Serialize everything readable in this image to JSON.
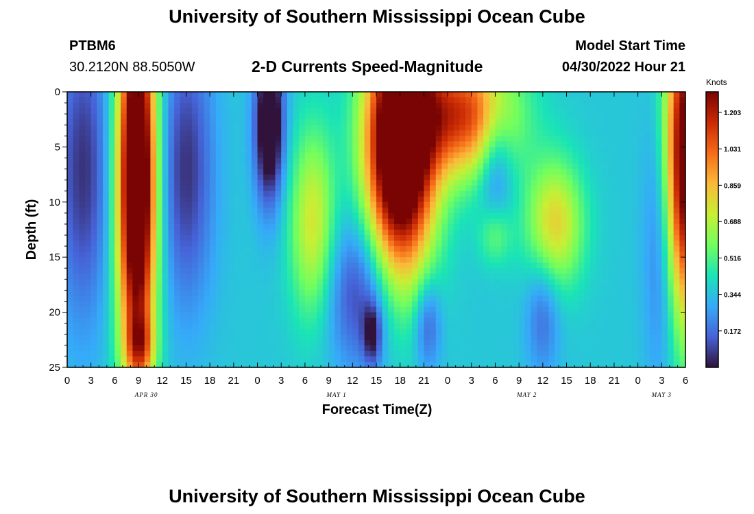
{
  "header": {
    "title": "University of Southern Mississippi Ocean Cube",
    "station": "PTBM6",
    "coords": "30.2120N  88.5050W",
    "subtitle": "2-D Currents Speed-Magnitude",
    "model_label": "Model Start Time",
    "model_time": "04/30/2022 Hour 21"
  },
  "footer": {
    "title": "University of Southern Mississippi Ocean Cube"
  },
  "chart_data": {
    "type": "heatmap",
    "title": "2-D Currents Speed-Magnitude",
    "xlabel": "Forecast Time(Z)",
    "ylabel": "Depth (ft)",
    "x_hours_range": [
      0,
      78
    ],
    "x_tick_labels": [
      "0",
      "3",
      "6",
      "9",
      "12",
      "15",
      "18",
      "21",
      "0",
      "3",
      "6",
      "9",
      "12",
      "15",
      "18",
      "21",
      "0",
      "3",
      "6",
      "9",
      "12",
      "15",
      "18",
      "21",
      "0",
      "3",
      "6"
    ],
    "date_labels": [
      {
        "label": "APR 30",
        "hour": 10
      },
      {
        "label": "MAY 1",
        "hour": 34
      },
      {
        "label": "MAY 2",
        "hour": 58
      },
      {
        "label": "MAY 3",
        "hour": 75
      }
    ],
    "y_range": [
      0,
      25
    ],
    "y_ticks": [
      0,
      5,
      10,
      15,
      20,
      25
    ],
    "y_reversed": true,
    "colorbar": {
      "unit": "Knots",
      "min": 0.0,
      "max": 1.3,
      "ticks": [
        "1.203",
        "1.031",
        "0.859",
        "0.688",
        "0.516",
        "0.344",
        "0.172"
      ],
      "colormap": [
        "#30123b",
        "#4662d7",
        "#36aaf9",
        "#1ae4b6",
        "#72fe5e",
        "#c8ef34",
        "#faba39",
        "#f66b19",
        "#ca2a04",
        "#7a0403"
      ]
    },
    "features": [
      {
        "hour": 8.8,
        "depth": 8.0,
        "speed": 1.35,
        "sigma_h": 1.7,
        "sigma_d": 12.0
      },
      {
        "hour": 9.2,
        "depth": 23.0,
        "speed": 0.35,
        "sigma_h": 1.2,
        "sigma_d": 2.0
      },
      {
        "hour": 2.0,
        "depth": 7.0,
        "speed": -0.3,
        "sigma_h": 2.5,
        "sigma_d": 10.0
      },
      {
        "hour": 15.0,
        "depth": 7.0,
        "speed": -0.3,
        "sigma_h": 2.5,
        "sigma_d": 9.0
      },
      {
        "hour": 25.5,
        "depth": 3.0,
        "speed": -0.55,
        "sigma_h": 1.3,
        "sigma_d": 5.0
      },
      {
        "hour": 31.0,
        "depth": 12.0,
        "speed": 0.4,
        "sigma_h": 2.0,
        "sigma_d": 6.0
      },
      {
        "hour": 37.0,
        "depth": 18.0,
        "speed": -0.3,
        "sigma_h": 3.0,
        "sigma_d": 5.0
      },
      {
        "hour": 38.5,
        "depth": 22.0,
        "speed": -0.3,
        "sigma_h": 0.8,
        "sigma_d": 2.0
      },
      {
        "hour": 42.0,
        "depth": 5.0,
        "speed": 1.4,
        "sigma_h": 3.0,
        "sigma_d": 8.0
      },
      {
        "hour": 50.0,
        "depth": 2.0,
        "speed": 0.75,
        "sigma_h": 4.5,
        "sigma_d": 4.0
      },
      {
        "hour": 45.5,
        "depth": 21.0,
        "speed": -0.25,
        "sigma_h": 1.2,
        "sigma_d": 3.0
      },
      {
        "hour": 54.0,
        "depth": 6.0,
        "speed": -0.25,
        "sigma_h": 1.5,
        "sigma_d": 4.0
      },
      {
        "hour": 54.0,
        "depth": 13.0,
        "speed": 0.2,
        "sigma_h": 1.5,
        "sigma_d": 2.0
      },
      {
        "hour": 61.5,
        "depth": 12.0,
        "speed": 0.45,
        "sigma_h": 2.5,
        "sigma_d": 4.0
      },
      {
        "hour": 60.0,
        "depth": 20.0,
        "speed": -0.2,
        "sigma_h": 1.5,
        "sigma_d": 4.0
      },
      {
        "hour": 75.0,
        "depth": 14.0,
        "speed": -0.2,
        "sigma_h": 1.5,
        "sigma_d": 9.0
      },
      {
        "hour": 78.0,
        "depth": 6.0,
        "speed": 1.1,
        "sigma_h": 1.8,
        "sigma_d": 10.0
      }
    ],
    "base_speed": 0.36
  }
}
